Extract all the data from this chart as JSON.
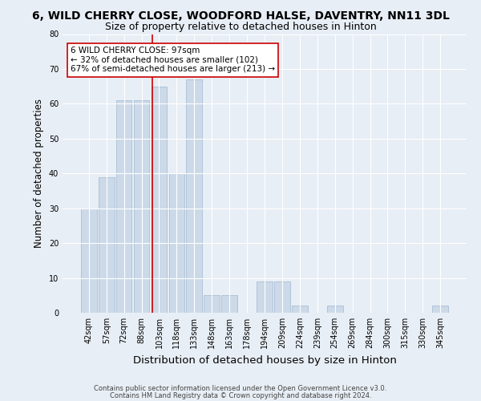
{
  "title": "6, WILD CHERRY CLOSE, WOODFORD HALSE, DAVENTRY, NN11 3DL",
  "subtitle": "Size of property relative to detached houses in Hinton",
  "xlabel": "Distribution of detached houses by size in Hinton",
  "ylabel": "Number of detached properties",
  "footer_line1": "Contains HM Land Registry data © Crown copyright and database right 2024.",
  "footer_line2": "Contains public sector information licensed under the Open Government Licence v3.0.",
  "bin_labels": [
    "42sqm",
    "57sqm",
    "72sqm",
    "88sqm",
    "103sqm",
    "118sqm",
    "133sqm",
    "148sqm",
    "163sqm",
    "178sqm",
    "194sqm",
    "209sqm",
    "224sqm",
    "239sqm",
    "254sqm",
    "269sqm",
    "284sqm",
    "300sqm",
    "315sqm",
    "330sqm",
    "345sqm"
  ],
  "bar_values": [
    30,
    39,
    61,
    61,
    65,
    40,
    67,
    5,
    5,
    0,
    9,
    9,
    2,
    0,
    2,
    0,
    0,
    0,
    0,
    0,
    2
  ],
  "bar_color": "#ccd9e8",
  "bar_edgecolor": "#a8bfd4",
  "annotation_text": "6 WILD CHERRY CLOSE: 97sqm\n← 32% of detached houses are smaller (102)\n67% of semi-detached houses are larger (213) →",
  "annotation_box_color": "#ffffff",
  "annotation_box_edgecolor": "#cc0000",
  "red_line_color": "#cc0000",
  "red_line_bin_index": 3.6,
  "ylim": [
    0,
    80
  ],
  "yticks": [
    0,
    10,
    20,
    30,
    40,
    50,
    60,
    70,
    80
  ],
  "bg_color": "#e8eef5",
  "plot_bg_color": "#e8eef5",
  "grid_color": "#ffffff",
  "title_fontsize": 10,
  "subtitle_fontsize": 9,
  "xlabel_fontsize": 9.5,
  "ylabel_fontsize": 8.5,
  "tick_fontsize": 7,
  "annotation_fontsize": 7.5,
  "footer_fontsize": 6
}
